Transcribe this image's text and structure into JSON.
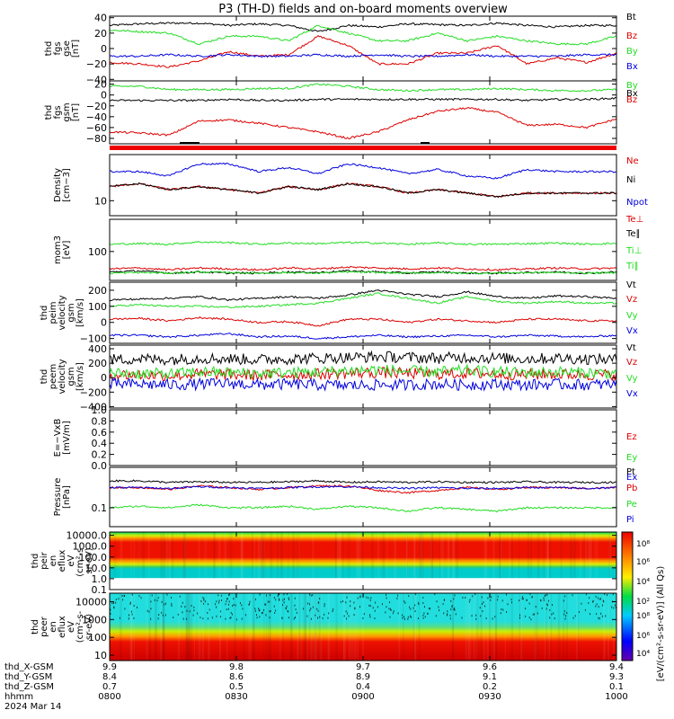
{
  "title": "P3 (TH-D) fields and on-board moments overview",
  "colors": {
    "black": "#000000",
    "red": "#dd0000",
    "green": "#22dd22",
    "blue": "#0000dd"
  },
  "chart_data": [
    {
      "type": "line",
      "panel": "fgs_gse",
      "ylabel": [
        "thd",
        "fgs",
        "gse",
        "[nT]"
      ],
      "yticks": [
        "40",
        "20",
        "0",
        "−20",
        "−40"
      ],
      "ylim": [
        -42,
        42
      ],
      "series": [
        {
          "name": "Bt",
          "color": "black",
          "values": [
            30,
            32,
            33,
            33,
            30,
            32,
            30,
            22,
            30,
            28,
            32,
            31,
            30,
            33,
            30,
            28,
            30,
            30
          ]
        },
        {
          "name": "Bz",
          "color": "red",
          "values": [
            -18,
            -20,
            -24,
            -16,
            -4,
            -10,
            -8,
            16,
            4,
            -20,
            -20,
            -6,
            -6,
            4,
            -20,
            -12,
            -18,
            -6
          ]
        },
        {
          "name": "By",
          "color": "green",
          "values": [
            24,
            22,
            20,
            6,
            16,
            16,
            10,
            30,
            20,
            10,
            10,
            20,
            10,
            16,
            10,
            6,
            6,
            16
          ]
        },
        {
          "name": "Bx",
          "color": "blue",
          "values": [
            -10,
            -10,
            -8,
            -10,
            -8,
            -10,
            -10,
            -8,
            -10,
            -8,
            -10,
            -10,
            -8,
            -10,
            -10,
            -10,
            -8,
            -8
          ]
        }
      ]
    },
    {
      "type": "line",
      "panel": "fgs_gsm",
      "ylabel": [
        "thd",
        "fgs",
        "gsm",
        "[nT]"
      ],
      "yticks": [
        "20",
        "0",
        "−20",
        "−40",
        "−60",
        "−80"
      ],
      "ylim": [
        -90,
        26
      ],
      "series": [
        {
          "name": "By",
          "color": "green",
          "values": [
            16,
            16,
            10,
            10,
            10,
            12,
            12,
            20,
            16,
            10,
            8,
            10,
            10,
            12,
            10,
            8,
            8,
            10
          ]
        },
        {
          "name": "Bx",
          "color": "black",
          "values": [
            -10,
            -10,
            -10,
            -10,
            -8,
            -10,
            -10,
            -8,
            -8,
            -8,
            -8,
            -8,
            -8,
            -8,
            -10,
            -8,
            -8,
            -6
          ]
        },
        {
          "name": "Bz",
          "color": "red",
          "values": [
            -68,
            -70,
            -74,
            -48,
            -46,
            -52,
            -60,
            -68,
            -80,
            -68,
            -46,
            -30,
            -24,
            -32,
            -56,
            -54,
            -60,
            -44
          ]
        }
      ]
    },
    {
      "type": "line",
      "panel": "density",
      "ylabel": [
        "Density",
        "[cm−3]"
      ],
      "yticks": [
        "10"
      ],
      "ylim": [
        7,
        30
      ],
      "scale": "log",
      "series": [
        {
          "name": "Ne",
          "color": "red",
          "values": [
            14,
            15,
            13,
            14,
            13,
            12,
            14,
            13,
            15,
            14,
            12,
            13,
            12,
            11,
            12,
            12,
            12,
            12
          ]
        },
        {
          "name": "Ni",
          "color": "black",
          "values": [
            14,
            15,
            13,
            14,
            13,
            12,
            14,
            13,
            15,
            14,
            12,
            13,
            12,
            11,
            12,
            12,
            12,
            12
          ]
        },
        {
          "name": "Npot",
          "color": "blue",
          "values": [
            20,
            20,
            18,
            24,
            24,
            20,
            22,
            19,
            24,
            22,
            19,
            21,
            18,
            17,
            21,
            20,
            20,
            20
          ]
        }
      ]
    },
    {
      "type": "line",
      "panel": "temperature",
      "ylabel": [
        "mom3",
        "[eV]"
      ],
      "yticks": [
        "100"
      ],
      "ylim": [
        20,
        600
      ],
      "scale": "log",
      "series": [
        {
          "name": "Te⊥",
          "color": "red",
          "values": [
            38,
            40,
            36,
            40,
            38,
            36,
            40,
            38,
            42,
            40,
            38,
            40,
            38,
            36,
            38,
            40,
            38,
            40
          ]
        },
        {
          "name": "Te∥",
          "color": "black",
          "values": [
            32,
            34,
            30,
            32,
            30,
            30,
            32,
            31,
            34,
            32,
            30,
            32,
            30,
            30,
            31,
            32,
            30,
            32
          ]
        },
        {
          "name": "Ti⊥",
          "color": "green",
          "values": [
            150,
            155,
            150,
            170,
            165,
            150,
            160,
            155,
            165,
            160,
            150,
            160,
            150,
            150,
            155,
            160,
            150,
            158
          ]
        },
        {
          "name": "Ti∥",
          "color": "green",
          "values": [
            30,
            31,
            30,
            32,
            31,
            30,
            31,
            30,
            32,
            31,
            30,
            31,
            30,
            30,
            31,
            31,
            30,
            31
          ]
        }
      ]
    },
    {
      "type": "line",
      "panel": "peim_velocity",
      "ylabel": [
        "thd",
        "peim",
        "velocity",
        "gsm",
        "[km/s]"
      ],
      "yticks": [
        "200",
        "100",
        "0",
        "−100"
      ],
      "ylim": [
        -130,
        250
      ],
      "series": [
        {
          "name": "Vt",
          "color": "black",
          "values": [
            140,
            145,
            150,
            160,
            140,
            150,
            160,
            150,
            170,
            200,
            175,
            160,
            190,
            160,
            150,
            165,
            160,
            150
          ]
        },
        {
          "name": "Vz",
          "color": "red",
          "values": [
            20,
            25,
            10,
            30,
            20,
            0,
            5,
            -20,
            20,
            20,
            0,
            20,
            10,
            0,
            20,
            20,
            10,
            10
          ]
        },
        {
          "name": "Vy",
          "color": "green",
          "values": [
            100,
            110,
            100,
            100,
            95,
            100,
            110,
            120,
            150,
            180,
            150,
            120,
            160,
            130,
            120,
            130,
            120,
            120
          ]
        },
        {
          "name": "Vx",
          "color": "blue",
          "values": [
            -80,
            -80,
            -90,
            -80,
            -70,
            -90,
            -85,
            -100,
            -90,
            -80,
            -90,
            -85,
            -80,
            -90,
            -80,
            -85,
            -90,
            -80
          ]
        }
      ]
    },
    {
      "type": "line",
      "panel": "peem_velocity",
      "ylabel": [
        "thd",
        "peem",
        "velocity",
        "gsm",
        "[km/s]"
      ],
      "yticks": [
        "400",
        "200",
        "0",
        "−200",
        "−400"
      ],
      "ylim": [
        -420,
        450
      ],
      "series": [
        {
          "name": "Vt",
          "color": "black",
          "values": [
            250,
            260,
            250,
            270,
            260,
            250,
            260,
            270,
            280,
            290,
            280,
            270,
            280,
            270,
            260,
            270,
            260,
            250
          ]
        },
        {
          "name": "Vz",
          "color": "red",
          "values": [
            40,
            40,
            30,
            50,
            40,
            30,
            40,
            50,
            60,
            70,
            60,
            50,
            60,
            50,
            40,
            50,
            40,
            40
          ]
        },
        {
          "name": "Vy",
          "color": "green",
          "values": [
            60,
            60,
            50,
            80,
            70,
            60,
            70,
            80,
            100,
            110,
            90,
            80,
            100,
            80,
            70,
            80,
            70,
            60
          ]
        },
        {
          "name": "Vx",
          "color": "blue",
          "values": [
            -90,
            -90,
            -100,
            -90,
            -80,
            -100,
            -90,
            -100,
            -110,
            -100,
            -100,
            -90,
            -100,
            -90,
            -100,
            -90,
            -100,
            -90
          ]
        }
      ]
    },
    {
      "type": "line",
      "panel": "efield",
      "ylabel": [
        "E=−VxB",
        "[mV/m]"
      ],
      "yticks": [
        "1.0",
        "0.8",
        "0.6",
        "0.4",
        "0.2",
        "0.0"
      ],
      "ylim": [
        0,
        1
      ],
      "series": [
        {
          "name": "Ez",
          "color": "red",
          "values": []
        },
        {
          "name": "Ey",
          "color": "green",
          "values": []
        },
        {
          "name": "Ex",
          "color": "blue",
          "values": []
        }
      ]
    },
    {
      "type": "line",
      "panel": "pressure",
      "ylabel": [
        "Pressure",
        "[nPa]"
      ],
      "yticks": [
        "0.1"
      ],
      "ylim": [
        0.03,
        1.3
      ],
      "scale": "log",
      "series": [
        {
          "name": "Pt",
          "color": "black",
          "values": [
            0.55,
            0.55,
            0.5,
            0.52,
            0.5,
            0.5,
            0.52,
            0.55,
            0.5,
            0.52,
            0.5,
            0.52,
            0.5,
            0.5,
            0.52,
            0.5,
            0.5,
            0.5
          ]
        },
        {
          "name": "Pb",
          "color": "red",
          "values": [
            0.36,
            0.36,
            0.32,
            0.4,
            0.36,
            0.32,
            0.36,
            0.4,
            0.4,
            0.3,
            0.26,
            0.3,
            0.36,
            0.32,
            0.36,
            0.36,
            0.34,
            0.36
          ]
        },
        {
          "name": "Pe",
          "color": "green",
          "values": [
            0.1,
            0.11,
            0.1,
            0.12,
            0.1,
            0.1,
            0.11,
            0.09,
            0.11,
            0.1,
            0.08,
            0.1,
            0.09,
            0.08,
            0.1,
            0.1,
            0.1,
            0.1
          ]
        },
        {
          "name": "Pi",
          "color": "blue",
          "values": [
            0.36,
            0.36,
            0.34,
            0.38,
            0.36,
            0.34,
            0.36,
            0.38,
            0.38,
            0.36,
            0.34,
            0.36,
            0.34,
            0.34,
            0.36,
            0.36,
            0.34,
            0.36
          ]
        }
      ]
    },
    {
      "type": "heatmap",
      "panel": "ion_spectrogram",
      "ylabel": [
        "thd",
        "peir",
        "en",
        "eflux",
        "eV",
        "(cm²-s-",
        "sr-eV)"
      ],
      "yticks": [
        "10000.0",
        "1000.0",
        "100.0",
        "10.0",
        "1.0",
        "0.1"
      ],
      "ylim": [
        0.1,
        20000
      ],
      "scale": "log"
    },
    {
      "type": "heatmap",
      "panel": "electron_spectrogram",
      "ylabel": [
        "thd",
        "peer",
        "en",
        "eflux",
        "eV",
        "(cm²-s-",
        "sr-eV)"
      ],
      "yticks": [
        "10000",
        "1000",
        "100",
        "10"
      ],
      "ylim": [
        5,
        30000
      ],
      "scale": "log"
    }
  ],
  "colorbar": {
    "label": "[eV/(cm²-s-sr-eV)] (All Qs)",
    "tick_labels": [
      "10⁸",
      "10⁶",
      "10⁴",
      "10²",
      "10⁸",
      "10⁶",
      "10⁴",
      "10²"
    ]
  },
  "xaxis": {
    "row_labels": [
      "thd_X-GSM",
      "thd_Y-GSM",
      "thd_Z-GSM",
      "hhmm",
      "2024 Mar 14"
    ],
    "columns": [
      {
        "x": "9.9",
        "y": "8.4",
        "z": "0.7",
        "t": "0800"
      },
      {
        "x": "9.8",
        "y": "8.6",
        "z": "0.5",
        "t": "0830"
      },
      {
        "x": "9.7",
        "y": "8.9",
        "z": "0.4",
        "t": "0900"
      },
      {
        "x": "9.6",
        "y": "9.1",
        "z": "0.2",
        "t": "0930"
      },
      {
        "x": "9.4",
        "y": "9.3",
        "z": "0.1",
        "t": "1000"
      }
    ]
  }
}
